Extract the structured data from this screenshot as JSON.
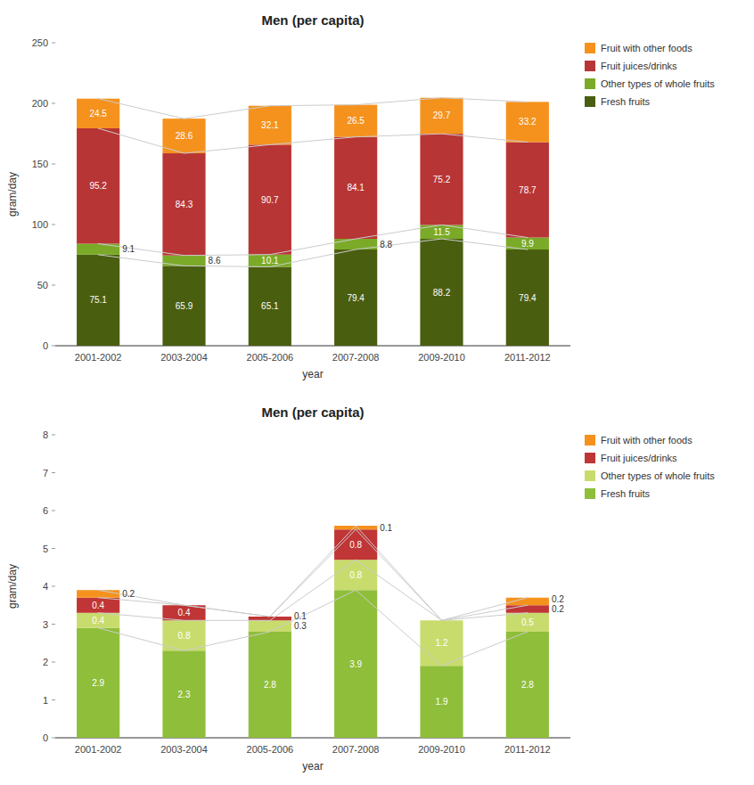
{
  "chart_data": [
    {
      "type": "bar",
      "stacked": true,
      "data_labels": true,
      "grid": false,
      "legend": "right",
      "title": "Men (per capita)",
      "xlabel": "year",
      "ylabel": "gram/day",
      "categories": [
        "2001-2002",
        "2003-2004",
        "2005-2006",
        "2007-2008",
        "2009-2010",
        "2011-2012"
      ],
      "ylim": [
        0,
        250
      ],
      "yticks": [
        0,
        50,
        100,
        150,
        200,
        250
      ],
      "series": [
        {
          "name": "Fresh fruits",
          "color": "#4a5e10",
          "values": [
            75.1,
            65.9,
            65.1,
            79.4,
            88.2,
            79.4
          ]
        },
        {
          "name": "Other types of whole fruits",
          "color": "#7aaa28",
          "values": [
            9.1,
            8.6,
            10.1,
            8.8,
            11.5,
            9.9
          ]
        },
        {
          "name": "Fruit juices/drinks",
          "color": "#b83535",
          "values": [
            95.2,
            84.3,
            90.7,
            84.1,
            75.2,
            78.7
          ]
        },
        {
          "name": "Fruit with other foods",
          "color": "#f5921e",
          "values": [
            24.5,
            28.6,
            32.1,
            26.5,
            29.7,
            33.2
          ]
        }
      ]
    },
    {
      "type": "bar",
      "stacked": true,
      "data_labels": true,
      "grid": false,
      "legend": "right",
      "title": "Men (per capita)",
      "xlabel": "year",
      "ylabel": "gram/day",
      "categories": [
        "2001-2002",
        "2003-2004",
        "2005-2006",
        "2007-2008",
        "2009-2010",
        "2011-2012"
      ],
      "ylim": [
        0,
        8
      ],
      "yticks": [
        0,
        1,
        2,
        3,
        4,
        5,
        6,
        7,
        8
      ],
      "series": [
        {
          "name": "Fresh fruits",
          "color": "#8fbe3a",
          "values": [
            2.9,
            2.3,
            2.8,
            3.9,
            1.9,
            2.8
          ]
        },
        {
          "name": "Other types of whole fruits",
          "color": "#c8dc6e",
          "values": [
            0.4,
            0.8,
            0.3,
            0.8,
            1.2,
            0.5
          ]
        },
        {
          "name": "Fruit juices/drinks",
          "color": "#c03535",
          "values": [
            0.4,
            0.4,
            0.1,
            0.8,
            0.0,
            0.2
          ]
        },
        {
          "name": "Fruit with other foods",
          "color": "#f5921e",
          "values": [
            0.2,
            0.0,
            0.0,
            0.1,
            0.0,
            0.2
          ]
        }
      ]
    }
  ]
}
